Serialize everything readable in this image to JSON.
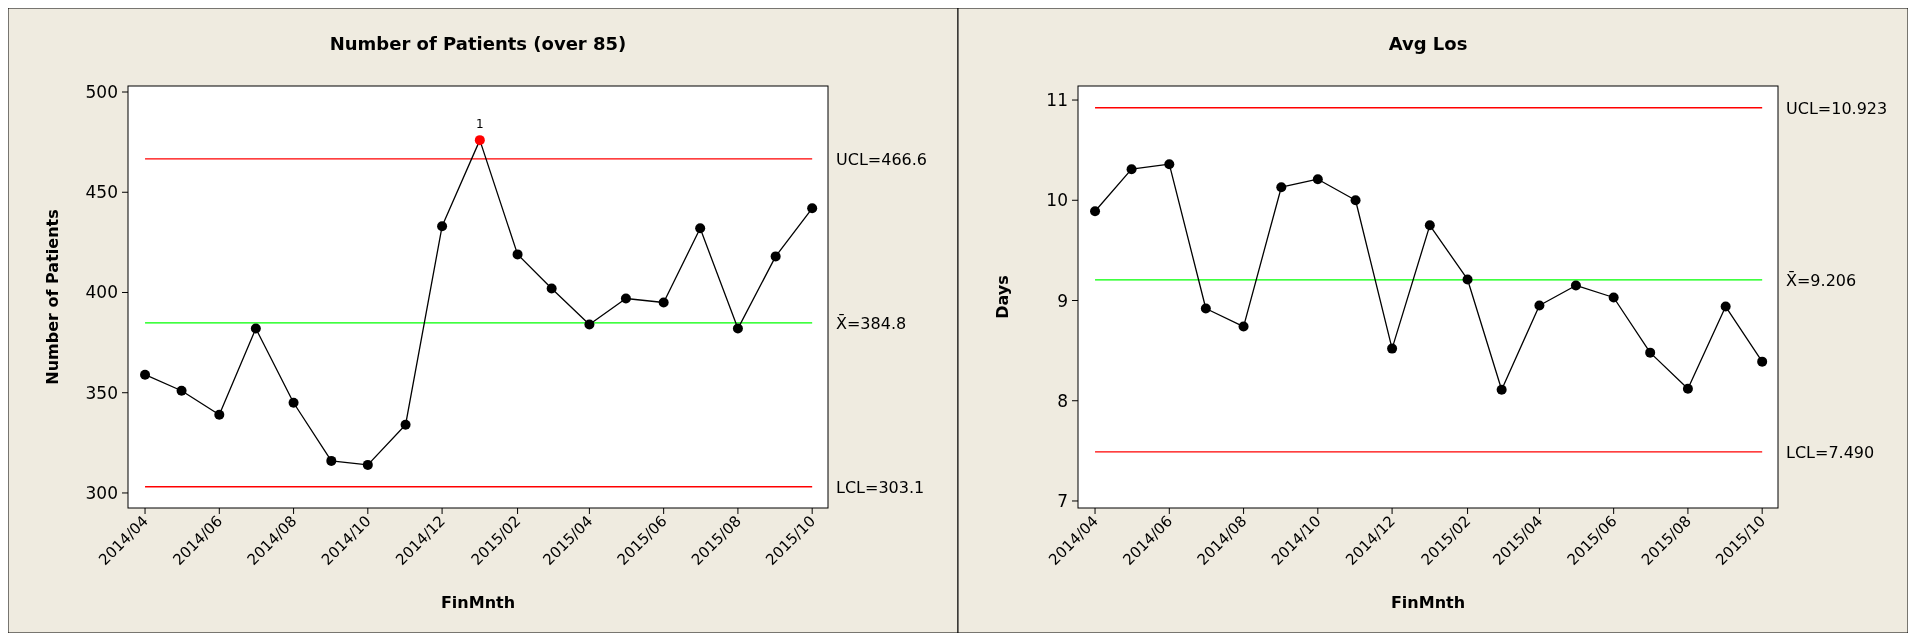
{
  "chart_data": [
    {
      "type": "line",
      "title": "Number of Patients (over 85)",
      "xlabel": "FinMnth",
      "ylabel": "Number of Patients",
      "x": [
        "2014-04",
        "2014-05",
        "2014-06",
        "2014-07",
        "2014-08",
        "2014-09",
        "2014-10",
        "2014-11",
        "2014-12",
        "2015-01",
        "2015-02",
        "2015-03",
        "2015-04",
        "2015-05",
        "2015-06",
        "2015-07",
        "2015-08",
        "2015-09",
        "2015-10"
      ],
      "series": [
        {
          "color": "#000000",
          "values": [
            359,
            351,
            339,
            382,
            345,
            316,
            314,
            334,
            433,
            476,
            419,
            402,
            384,
            397,
            395,
            432,
            382,
            418,
            442
          ],
          "colors": [
            "#000000",
            "#000000",
            "#000000",
            "#000000",
            "#000000",
            "#000000",
            "#000000",
            "#000000",
            "#000000",
            "#ff0000",
            "#000000",
            "#000000",
            "#000000",
            "#000000",
            "#000000",
            "#000000",
            "#000000",
            "#000000",
            "#000000"
          ]
        }
      ],
      "marker": "circle",
      "xlim": [
        "2014-03-18",
        "2015-10-14"
      ],
      "xticks": [
        {
          "value": "2014-04",
          "label": "2014/04"
        },
        {
          "value": "2014-06",
          "label": "2014/06"
        },
        {
          "value": "2014-08",
          "label": "2014/08"
        },
        {
          "value": "2014-10",
          "label": "2014/10"
        },
        {
          "value": "2014-12",
          "label": "2014/12"
        },
        {
          "value": "2015-02",
          "label": "2015/02"
        },
        {
          "value": "2015-04",
          "label": "2015/04"
        },
        {
          "value": "2015-06",
          "label": "2015/06"
        },
        {
          "value": "2015-08",
          "label": "2015/08"
        },
        {
          "value": "2015-10",
          "label": "2015/10"
        }
      ],
      "ylim": [
        292.5,
        503
      ],
      "yticks": [
        300,
        350,
        400,
        450,
        500
      ],
      "ref_lines": [
        {
          "axis": "y",
          "value": 466.6,
          "label": "UCL=466.6",
          "color": "#ff0000"
        },
        {
          "axis": "y",
          "value": 384.8,
          "label": "X̄=384.8",
          "color": "#00ff00"
        },
        {
          "axis": "y",
          "value": 303.1,
          "label": "LCL=303.1",
          "color": "#ff0000"
        }
      ],
      "annotations": [
        {
          "text": "1",
          "x": "2015-01",
          "y": 476
        }
      ],
      "grid": false
    },
    {
      "type": "line",
      "title": "Avg Los",
      "xlabel": "FinMnth",
      "ylabel": "Days",
      "x": [
        "2014-04",
        "2014-05",
        "2014-06",
        "2014-07",
        "2014-08",
        "2014-09",
        "2014-10",
        "2014-11",
        "2014-12",
        "2015-01",
        "2015-02",
        "2015-03",
        "2015-04",
        "2015-05",
        "2015-06",
        "2015-07",
        "2015-08",
        "2015-09",
        "2015-10"
      ],
      "series": [
        {
          "color": "#000000",
          "values": [
            9.89,
            10.31,
            10.36,
            8.92,
            8.74,
            10.13,
            10.21,
            10.0,
            8.52,
            9.75,
            9.21,
            8.11,
            8.95,
            9.15,
            9.03,
            8.48,
            8.12,
            8.94,
            8.39
          ]
        }
      ],
      "marker": "circle",
      "xlim": [
        "2014-03-18",
        "2015-10-14"
      ],
      "xticks": [
        {
          "value": "2014-04",
          "label": "2014/04"
        },
        {
          "value": "2014-06",
          "label": "2014/06"
        },
        {
          "value": "2014-08",
          "label": "2014/08"
        },
        {
          "value": "2014-10",
          "label": "2014/10"
        },
        {
          "value": "2014-12",
          "label": "2014/12"
        },
        {
          "value": "2015-02",
          "label": "2015/02"
        },
        {
          "value": "2015-04",
          "label": "2015/04"
        },
        {
          "value": "2015-06",
          "label": "2015/06"
        },
        {
          "value": "2015-08",
          "label": "2015/08"
        },
        {
          "value": "2015-10",
          "label": "2015/10"
        }
      ],
      "ylim": [
        6.93,
        11.14
      ],
      "yticks": [
        7,
        8,
        9,
        10,
        11
      ],
      "ref_lines": [
        {
          "axis": "y",
          "value": 10.923,
          "label": "UCL=10.923",
          "color": "#ff0000"
        },
        {
          "axis": "y",
          "value": 9.206,
          "label": "X̄=9.206",
          "color": "#00ff00"
        },
        {
          "axis": "y",
          "value": 7.49,
          "label": "LCL=7.490",
          "color": "#ff0000"
        }
      ],
      "grid": false
    }
  ]
}
